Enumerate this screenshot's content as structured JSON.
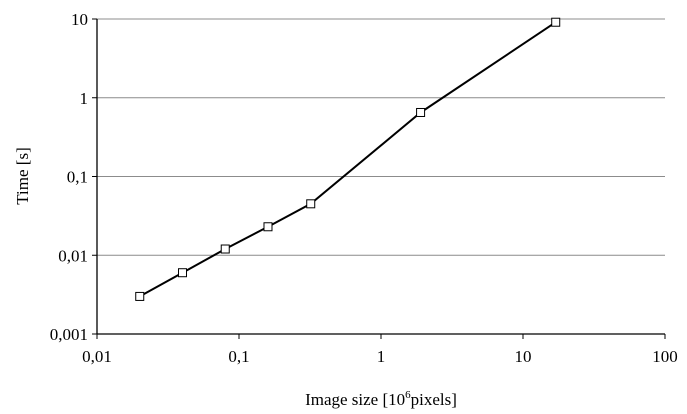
{
  "chart_data": {
    "type": "line",
    "x_label": "Image size [10",
    "x_label_superscript": "6",
    "x_label_suffix": "pixels]",
    "y_label": "Time [s]",
    "x": [
      0.02,
      0.04,
      0.08,
      0.16,
      0.32,
      1.9,
      17
    ],
    "values": [
      0.003,
      0.006,
      0.012,
      0.023,
      0.045,
      0.65,
      9.1
    ],
    "color": "#000000",
    "xlog": true,
    "ylog": true,
    "grid": true,
    "xlim": [
      0.01,
      100
    ],
    "ylim": [
      0.001,
      10
    ],
    "xticks": [
      {
        "value": 0.01,
        "label": "0,01"
      },
      {
        "value": 0.1,
        "label": "0,1"
      },
      1,
      10,
      100
    ],
    "yticks": [
      {
        "value": 0.001,
        "label": "0,001"
      },
      {
        "value": 0.01,
        "label": "0,01"
      },
      {
        "value": 0.1,
        "label": "0,1"
      },
      1,
      10
    ]
  }
}
